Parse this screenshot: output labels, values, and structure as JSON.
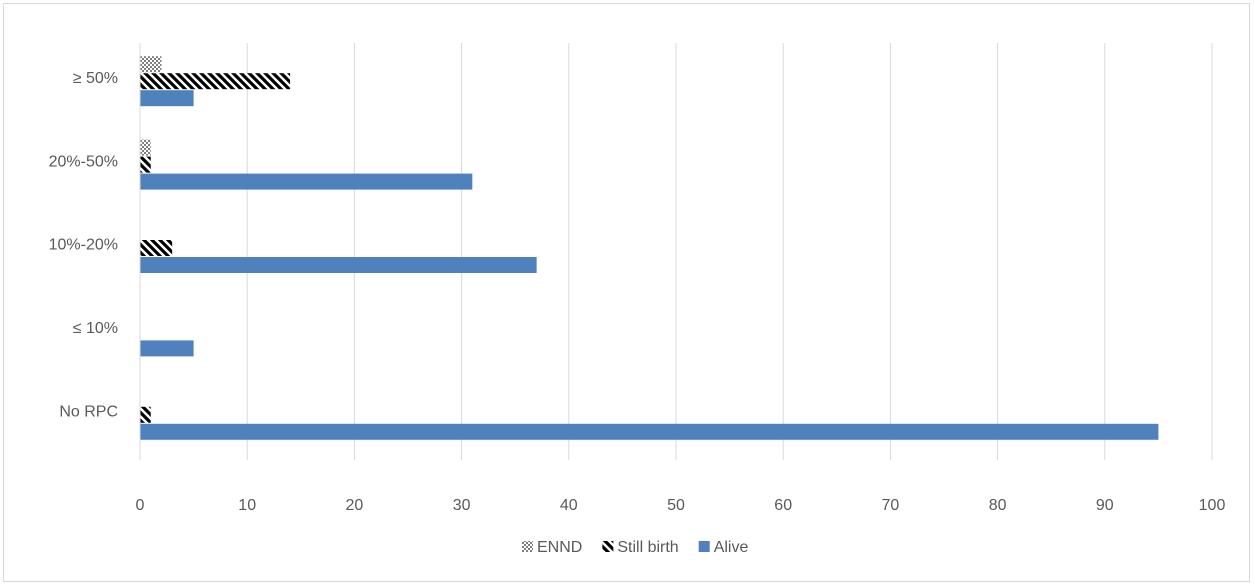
{
  "chart_data": {
    "type": "bar",
    "orientation": "horizontal",
    "categories": [
      "No RPC",
      "≤  10%",
      "10%-20%",
      "20%-50%",
      "≥ 50%"
    ],
    "series": [
      {
        "name": "Alive",
        "values": [
          95,
          5,
          37,
          31,
          5
        ],
        "color": "#4f81bd",
        "pattern": "solid"
      },
      {
        "name": "Still birth",
        "values": [
          1,
          0,
          3,
          1,
          14
        ],
        "color": "#000000",
        "pattern": "diagonal"
      },
      {
        "name": "ENND",
        "values": [
          0,
          0,
          0,
          1,
          2
        ],
        "color": "#7f7f7f",
        "pattern": "checker"
      }
    ],
    "legend_order": [
      "ENND",
      "Still birth",
      "Alive"
    ],
    "xlim": [
      0,
      100
    ],
    "xticks": [
      0,
      10,
      20,
      30,
      40,
      50,
      60,
      70,
      80,
      90,
      100
    ],
    "grid": true,
    "legend_position": "bottom"
  }
}
